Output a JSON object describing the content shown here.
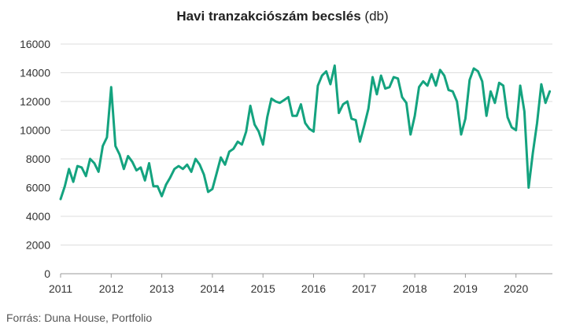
{
  "title_bold": "Havi tranzakciószám becslés",
  "title_unit": "(db)",
  "source": "Forrás: Duna House, Portfolio",
  "colors": {
    "line": "#14a37f",
    "grid": "#dddddd",
    "axis": "#999999"
  },
  "chart_data": {
    "type": "line",
    "title": "Havi tranzakciószám becslés (db)",
    "xlabel": "",
    "ylabel": "",
    "x_ticks": [
      "2011",
      "2012",
      "2013",
      "2014",
      "2015",
      "2016",
      "2017",
      "2018",
      "2019",
      "2020"
    ],
    "y_ticks": [
      0,
      2000,
      4000,
      6000,
      8000,
      10000,
      12000,
      14000,
      16000
    ],
    "ylim": [
      0,
      16000
    ],
    "x_start": "2011-01",
    "grid": true,
    "legend": "none",
    "series": [
      {
        "values": [
          5200,
          6100,
          7300,
          6400,
          7500,
          7400,
          6800,
          8000,
          7700,
          7100,
          8900,
          9500,
          13000,
          8900,
          8300,
          7300,
          8200,
          7800,
          7200,
          7400,
          6500,
          7700,
          6100,
          6100,
          5400,
          6200,
          6700,
          7300,
          7500,
          7300,
          7600,
          7100,
          8000,
          7600,
          6900,
          5700,
          5900,
          7000,
          8100,
          7600,
          8500,
          8700,
          9200,
          9000,
          9900,
          11700,
          10400,
          9900,
          9000,
          10900,
          12200,
          12000,
          11900,
          12100,
          12300,
          11000,
          11000,
          11800,
          10500,
          10100,
          9900,
          13100,
          13800,
          14100,
          13200,
          14500,
          11200,
          11800,
          12000,
          10800,
          10700,
          9200,
          10300,
          11500,
          13700,
          12500,
          13800,
          12900,
          13000,
          13700,
          13600,
          12300,
          11900,
          9700,
          11000,
          13000,
          13400,
          13100,
          13900,
          13100,
          14200,
          13800,
          12800,
          12700,
          12000,
          9700,
          10800,
          13500,
          14300,
          14100,
          13400,
          11000,
          12700,
          11900,
          13300,
          13100,
          10900,
          10200,
          10000,
          13100,
          11300,
          6000,
          8400,
          10500,
          13200,
          11900,
          12700
        ]
      }
    ]
  }
}
